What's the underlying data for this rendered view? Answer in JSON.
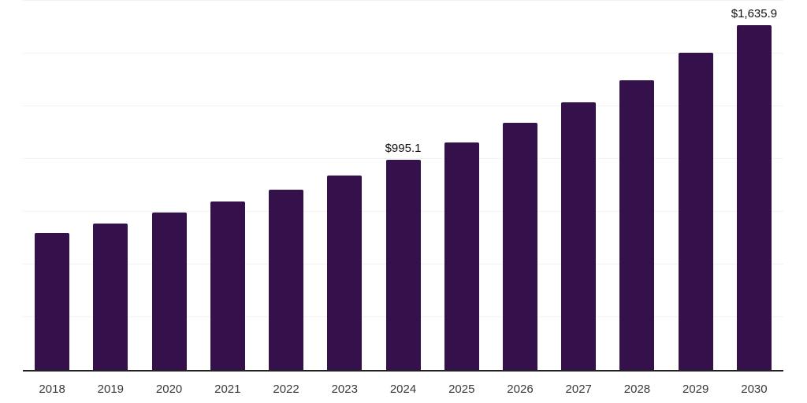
{
  "chart_data": {
    "type": "bar",
    "categories": [
      "2018",
      "2019",
      "2020",
      "2021",
      "2022",
      "2023",
      "2024",
      "2025",
      "2026",
      "2027",
      "2028",
      "2029",
      "2030"
    ],
    "values": [
      648,
      694,
      746,
      797,
      855,
      921,
      995.1,
      1079,
      1170,
      1267,
      1374,
      1504,
      1635.9
    ],
    "data_labels": [
      null,
      null,
      null,
      null,
      null,
      null,
      "$995.1",
      null,
      null,
      null,
      null,
      null,
      "$1,635.9"
    ],
    "title": "",
    "xlabel": "",
    "ylabel": "",
    "ylim": [
      0,
      1750
    ],
    "gridline_interval": 250,
    "grid": "horizontal-only",
    "legend": "none",
    "y_axis_tick_labels_visible": false
  },
  "style": {
    "bar_color": "#35114b",
    "background_color": "#ffffff",
    "gridline_color": "#f2f2f2",
    "axis_line_color": "#222222",
    "tick_label_color": "#3a3a3a",
    "data_label_color": "#111111"
  }
}
